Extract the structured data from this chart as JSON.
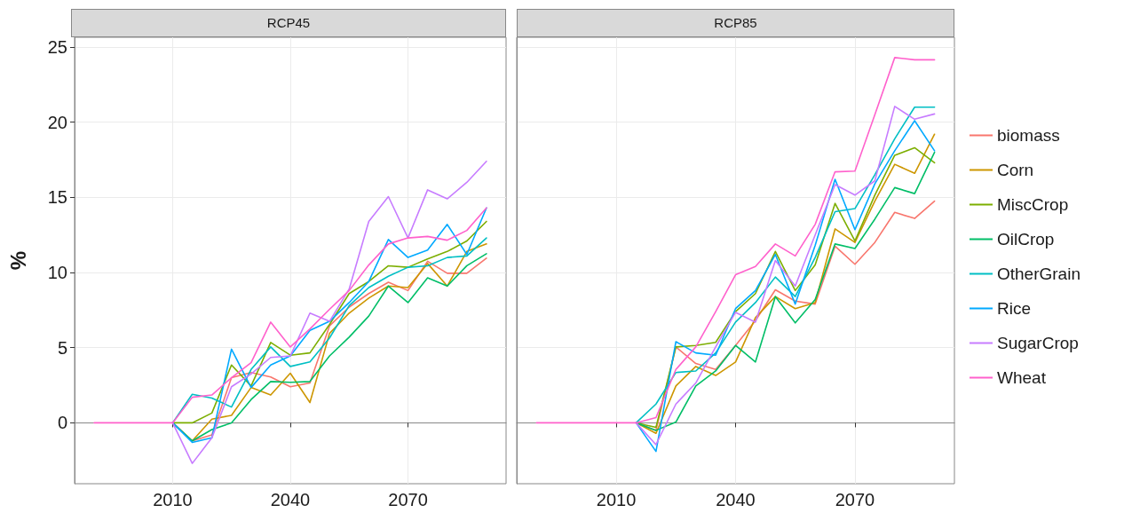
{
  "chart_data": [
    {
      "type": "line",
      "title": "RCP45",
      "ylabel": "%",
      "x": [
        1990,
        2010,
        2015,
        2020,
        2025,
        2030,
        2035,
        2040,
        2045,
        2050,
        2055,
        2060,
        2065,
        2070,
        2075,
        2080,
        2085,
        2090
      ],
      "xlim": [
        1985,
        2095
      ],
      "xticks": [
        2010,
        2040,
        2070
      ],
      "ylim": [
        -4.05,
        25.65
      ],
      "yticks": [
        0,
        5,
        10,
        15,
        20,
        25
      ],
      "grid": true,
      "legend": false,
      "line_style": "solid",
      "marker": "none",
      "series": [
        {
          "color": "#f8766d",
          "values": [
            null,
            0,
            -1.2,
            -0.8,
            3.0,
            3.35,
            3.05,
            2.4,
            2.65,
            6.45,
            7.7,
            8.6,
            9.35,
            8.8,
            10.75,
            9.95,
            9.95,
            10.95
          ]
        },
        {
          "color": "#cd9600",
          "values": [
            null,
            0,
            -1.2,
            0.25,
            0.5,
            2.35,
            1.85,
            3.3,
            1.35,
            5.95,
            7.3,
            8.3,
            9.1,
            9.0,
            10.6,
            9.1,
            11.4,
            11.9
          ]
        },
        {
          "color": "#7cae00",
          "values": [
            null,
            0,
            0,
            0.65,
            3.85,
            2.45,
            5.35,
            4.5,
            4.65,
            6.55,
            8.6,
            9.4,
            10.45,
            10.35,
            10.9,
            11.4,
            12.1,
            13.4
          ]
        },
        {
          "color": "#00be67",
          "values": [
            null,
            0,
            -1.2,
            -0.45,
            0,
            1.55,
            2.75,
            2.7,
            2.75,
            4.45,
            5.7,
            7.1,
            9.1,
            8.0,
            9.65,
            9.1,
            10.45,
            11.25
          ]
        },
        {
          "color": "#00bfc4",
          "values": [
            null,
            0,
            1.9,
            1.65,
            1.05,
            3.55,
            5.05,
            3.75,
            4.05,
            5.65,
            7.8,
            9.0,
            9.75,
            10.35,
            10.45,
            11.0,
            11.1,
            12.3
          ]
        },
        {
          "color": "#00a9ff",
          "values": [
            null,
            0,
            -1.3,
            -1.0,
            4.9,
            2.35,
            3.85,
            4.45,
            6.15,
            6.75,
            8.0,
            9.4,
            12.2,
            11.0,
            11.5,
            13.2,
            11.2,
            14.3
          ]
        },
        {
          "color": "#c77cff",
          "values": [
            null,
            0,
            -2.7,
            -1.0,
            2.4,
            3.25,
            4.35,
            4.45,
            7.3,
            6.75,
            8.9,
            13.4,
            15.05,
            12.3,
            15.5,
            14.9,
            16.0,
            17.4
          ]
        },
        {
          "color": "#ff61cc",
          "values": [
            0,
            0,
            1.7,
            1.85,
            3.0,
            4.0,
            6.7,
            5.05,
            6.25,
            7.55,
            8.8,
            10.5,
            11.9,
            12.3,
            12.4,
            12.15,
            12.8,
            14.3
          ]
        }
      ]
    },
    {
      "type": "line",
      "title": "RCP85",
      "x": [
        1990,
        2010,
        2015,
        2020,
        2025,
        2030,
        2035,
        2040,
        2045,
        2050,
        2055,
        2060,
        2065,
        2070,
        2075,
        2080,
        2085,
        2090
      ],
      "xlim": [
        1985,
        2095
      ],
      "xticks": [
        2010,
        2040,
        2070
      ],
      "ylim": [
        -4.05,
        25.65
      ],
      "yticks": [
        0,
        5,
        10,
        15,
        20,
        25
      ],
      "tick_labels": "x",
      "grid": true,
      "legend": "right",
      "line_style": "solid",
      "marker": "none",
      "series": [
        {
          "name": "biomass",
          "color": "#f8766d",
          "values": [
            null,
            null,
            0,
            -0.5,
            5.05,
            3.95,
            3.55,
            5.15,
            6.8,
            8.85,
            8.1,
            7.9,
            11.75,
            10.55,
            12.0,
            14.0,
            13.6,
            14.75
          ]
        },
        {
          "name": "Corn",
          "color": "#cd9600",
          "values": [
            null,
            null,
            0,
            -0.7,
            2.45,
            3.75,
            3.15,
            4.05,
            7.0,
            8.4,
            7.6,
            8.0,
            12.9,
            12.0,
            14.75,
            17.2,
            16.6,
            19.2
          ]
        },
        {
          "name": "MiscCrop",
          "color": "#7cae00",
          "values": [
            null,
            null,
            0,
            -0.3,
            5.05,
            5.15,
            5.35,
            7.4,
            8.6,
            11.4,
            8.8,
            10.5,
            14.6,
            12.1,
            15.15,
            17.8,
            18.3,
            17.3
          ]
        },
        {
          "name": "OilCrop",
          "color": "#00be67",
          "values": [
            null,
            null,
            0,
            -0.5,
            0.05,
            2.45,
            3.45,
            5.15,
            4.05,
            8.4,
            6.65,
            8.2,
            11.9,
            11.6,
            13.55,
            15.65,
            15.25,
            18.0
          ]
        },
        {
          "name": "OtherGrain",
          "color": "#00bfc4",
          "values": [
            null,
            null,
            0,
            1.25,
            3.35,
            3.45,
            4.65,
            6.7,
            8.0,
            9.7,
            8.4,
            11.0,
            14.05,
            14.25,
            16.5,
            18.9,
            21.0,
            21.0
          ]
        },
        {
          "name": "Rice",
          "color": "#00a9ff",
          "values": [
            null,
            null,
            0,
            -1.9,
            5.4,
            4.65,
            4.5,
            7.6,
            8.8,
            11.2,
            7.9,
            11.8,
            16.2,
            12.85,
            15.9,
            18.1,
            20.1,
            18.1
          ]
        },
        {
          "name": "SugarCrop",
          "color": "#c77cff",
          "values": [
            null,
            null,
            0,
            -1.45,
            1.25,
            2.65,
            5.05,
            7.35,
            6.7,
            10.8,
            9.1,
            12.5,
            15.85,
            15.15,
            16.1,
            21.05,
            20.2,
            20.55
          ]
        },
        {
          "name": "Wheat",
          "color": "#ff61cc",
          "values": [
            0,
            0,
            0,
            0.35,
            3.55,
            5.05,
            7.4,
            9.85,
            10.4,
            11.9,
            11.1,
            13.2,
            16.7,
            16.75,
            20.5,
            24.3,
            24.15,
            24.15
          ]
        }
      ]
    }
  ]
}
